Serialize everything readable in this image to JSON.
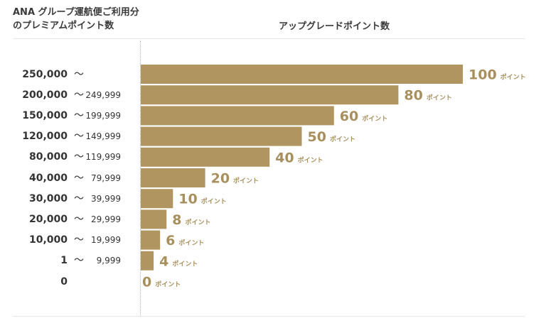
{
  "header": {
    "left_line1": "ANA グループ運航便ご利用分",
    "left_line2": "のプレミアムポイント数",
    "right_title": "アップグレードポイント数"
  },
  "colors": {
    "bar": "#b09561",
    "value_text": "#a88f5e",
    "unit_text": "#a88f5e"
  },
  "chart_data": {
    "type": "bar",
    "orientation": "horizontal",
    "x_max": 100,
    "unit_label": "ポイント",
    "rows": [
      {
        "from": "250,000",
        "tilde": "〜",
        "to": "",
        "value": 100
      },
      {
        "from": "200,000",
        "tilde": "〜",
        "to": "249,999",
        "value": 80
      },
      {
        "from": "150,000",
        "tilde": "〜",
        "to": "199,999",
        "value": 60
      },
      {
        "from": "120,000",
        "tilde": "〜",
        "to": "149,999",
        "value": 50
      },
      {
        "from": "80,000",
        "tilde": "〜",
        "to": "119,999",
        "value": 40
      },
      {
        "from": "40,000",
        "tilde": "〜",
        "to": "79,999",
        "value": 20
      },
      {
        "from": "30,000",
        "tilde": "〜",
        "to": "39,999",
        "value": 10
      },
      {
        "from": "20,000",
        "tilde": "〜",
        "to": "29,999",
        "value": 8
      },
      {
        "from": "10,000",
        "tilde": "〜",
        "to": "19,999",
        "value": 6
      },
      {
        "from": "1",
        "tilde": "〜",
        "to": "9,999",
        "value": 4
      },
      {
        "from": "0",
        "tilde": "",
        "to": "",
        "value": 0
      }
    ]
  }
}
